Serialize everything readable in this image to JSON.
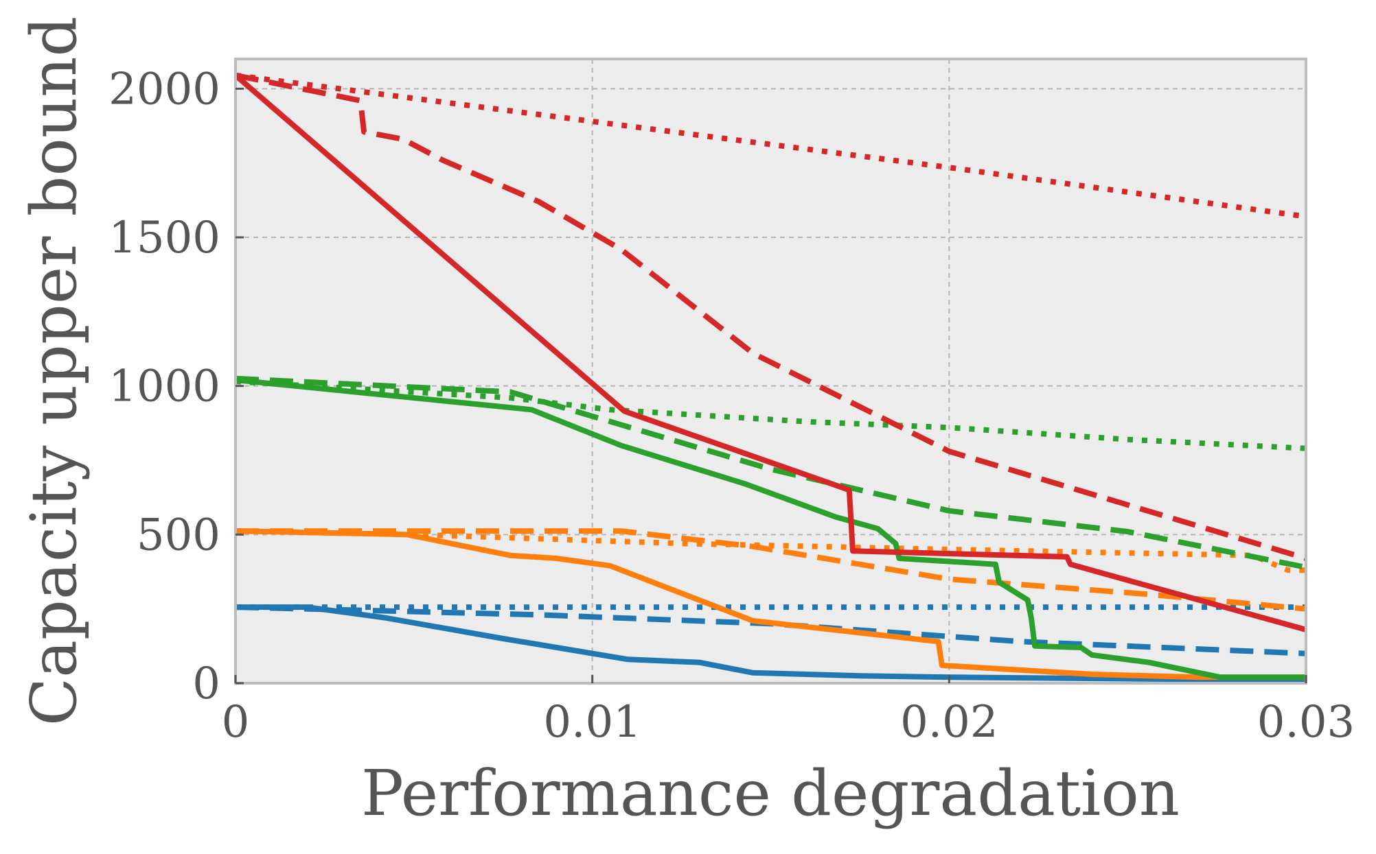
{
  "chart_data": {
    "type": "line",
    "title": "",
    "xlabel": "Performance degradation",
    "ylabel": "Capacity upper bound",
    "xlim": [
      0,
      0.03
    ],
    "ylim": [
      0,
      2100
    ],
    "xticks": [
      0,
      0.01,
      0.02,
      0.03
    ],
    "xtick_labels": [
      "0",
      "0.01",
      "0.02",
      "0.03"
    ],
    "yticks": [
      0,
      500,
      1000,
      1500,
      2000
    ],
    "ytick_labels": [
      "0",
      "500",
      "1000",
      "1500",
      "2000"
    ],
    "grid": true,
    "legend": "none",
    "background": "#ececec",
    "series": [
      {
        "color": "#1f77b4",
        "style": "solid",
        "x": [
          0,
          0.002,
          0.0042,
          0.0075,
          0.011,
          0.013,
          0.0145,
          0.0175,
          0.02,
          0.025,
          0.03
        ],
        "y": [
          256,
          256,
          220,
          150,
          80,
          70,
          35,
          25,
          20,
          15,
          10
        ]
      },
      {
        "color": "#1f77b4",
        "style": "dashed",
        "x": [
          0,
          0.0085,
          0.015,
          0.022,
          0.03
        ],
        "y": [
          256,
          230,
          200,
          140,
          100
        ]
      },
      {
        "color": "#1f77b4",
        "style": "dotted",
        "x": [
          0,
          0.03
        ],
        "y": [
          256,
          256
        ]
      },
      {
        "color": "#ff7f0e",
        "style": "solid",
        "x": [
          0,
          0.0048,
          0.0077,
          0.009,
          0.0105,
          0.0145,
          0.0197,
          0.0198,
          0.024,
          0.027,
          0.03
        ],
        "y": [
          512,
          500,
          430,
          420,
          395,
          210,
          140,
          60,
          30,
          20,
          20
        ]
      },
      {
        "color": "#ff7f0e",
        "style": "dashed",
        "x": [
          0,
          0.0108,
          0.0145,
          0.02,
          0.0255,
          0.03
        ],
        "y": [
          512,
          512,
          460,
          350,
          300,
          250
        ]
      },
      {
        "color": "#ff7f0e",
        "style": "dotted",
        "x": [
          0,
          0.005,
          0.0125,
          0.02,
          0.0285,
          0.0295,
          0.03
        ],
        "y": [
          512,
          500,
          470,
          450,
          430,
          380,
          380
        ]
      },
      {
        "color": "#2ca02c",
        "style": "solid",
        "x": [
          0,
          0.0083,
          0.0108,
          0.0143,
          0.0168,
          0.018,
          0.0185,
          0.0186,
          0.0213,
          0.0214,
          0.0222,
          0.0223,
          0.0224,
          0.0237,
          0.024,
          0.0256,
          0.0276,
          0.03
        ],
        "y": [
          1020,
          920,
          800,
          670,
          560,
          520,
          470,
          420,
          400,
          340,
          280,
          220,
          125,
          120,
          95,
          70,
          20,
          20
        ]
      },
      {
        "color": "#2ca02c",
        "style": "dashed",
        "x": [
          0,
          0.0077,
          0.015,
          0.0175,
          0.02,
          0.025,
          0.03
        ],
        "y": [
          1025,
          980,
          720,
          650,
          580,
          510,
          390
        ]
      },
      {
        "color": "#2ca02c",
        "style": "dotted",
        "x": [
          0,
          0.0077,
          0.0105,
          0.016,
          0.02,
          0.025,
          0.03
        ],
        "y": [
          1015,
          960,
          920,
          880,
          860,
          820,
          790
        ]
      },
      {
        "color": "#d62728",
        "style": "solid",
        "x": [
          0,
          0.0109,
          0.0172,
          0.0173,
          0.0233,
          0.0234,
          0.03
        ],
        "y": [
          2045,
          915,
          650,
          445,
          425,
          400,
          180
        ]
      },
      {
        "color": "#d62728",
        "style": "dashed",
        "x": [
          0,
          0.0035,
          0.0036,
          0.0047,
          0.0058,
          0.0085,
          0.0108,
          0.0145,
          0.02,
          0.0225,
          0.03
        ],
        "y": [
          2045,
          1960,
          1855,
          1830,
          1760,
          1620,
          1460,
          1110,
          780,
          690,
          420
        ]
      },
      {
        "color": "#d62728",
        "style": "dotted",
        "x": [
          0,
          0.01,
          0.02,
          0.03
        ],
        "y": [
          2045,
          1890,
          1735,
          1570
        ]
      }
    ]
  }
}
